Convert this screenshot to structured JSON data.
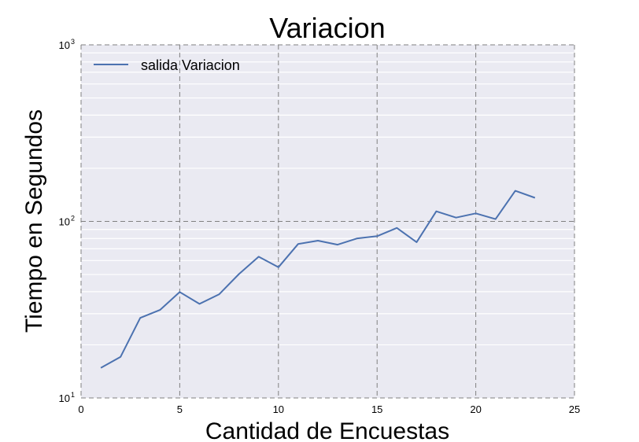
{
  "chart_data": {
    "type": "line",
    "title": "Variacion",
    "xlabel": "Cantidad de Encuestas",
    "ylabel": "Tiempo en Segundos",
    "xlim": [
      0,
      25
    ],
    "ylim": [
      10,
      1000
    ],
    "yscale": "log",
    "grid": true,
    "legend_position": "top-left",
    "x_ticks": [
      "0",
      "5",
      "10",
      "15",
      "20",
      "25"
    ],
    "y_ticks": [
      {
        "base": "10",
        "exp": "1"
      },
      {
        "base": "10",
        "exp": "2"
      },
      {
        "base": "10",
        "exp": "3"
      }
    ],
    "series": [
      {
        "name": "salida Variacion",
        "color": "#4c72b0",
        "x": [
          1,
          2,
          3,
          4,
          5,
          6,
          7,
          8,
          9,
          10,
          11,
          12,
          13,
          14,
          15,
          16,
          17,
          18,
          19,
          20,
          21,
          22,
          23
        ],
        "y": [
          14.8,
          17.1,
          28.4,
          31.5,
          39.8,
          34.1,
          38.7,
          50.3,
          63.1,
          55.0,
          74.5,
          77.8,
          73.8,
          80.1,
          82.5,
          91.8,
          76.3,
          114.0,
          105.0,
          111.0,
          103.0,
          149.0,
          136.0
        ]
      }
    ],
    "colors": {
      "plot_background": "#eaeaf2",
      "minor_grid": "#ffffff",
      "major_grid": "#808080"
    }
  }
}
